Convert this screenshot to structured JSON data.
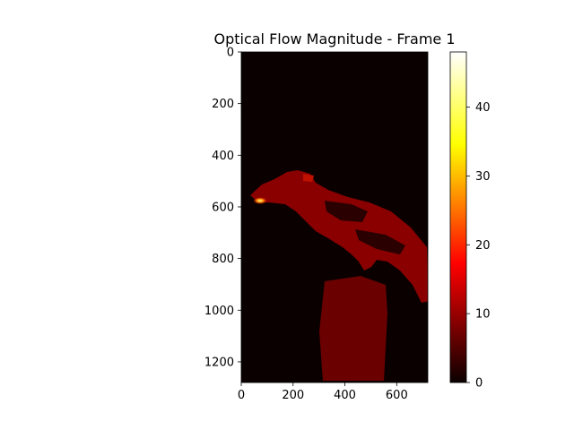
{
  "chart_data": {
    "type": "heatmap",
    "title": "Optical Flow Magnitude - Frame 1",
    "xlabel": "",
    "ylabel": "",
    "colormap": "hot",
    "xlim": [
      0,
      720
    ],
    "ylim": [
      1280,
      0
    ],
    "x_ticks": [
      0,
      200,
      400,
      600
    ],
    "y_ticks": [
      0,
      200,
      400,
      600,
      800,
      1000,
      1200
    ],
    "colorbar": {
      "range": [
        0,
        48
      ],
      "ticks": [
        0,
        10,
        20,
        30,
        40
      ]
    },
    "background_value": 0,
    "regions": [
      {
        "name": "bird",
        "typical_value": 9
      },
      {
        "name": "perch-post",
        "typical_value": 6
      },
      {
        "name": "beak-hotspot",
        "typical_value": 38
      }
    ]
  }
}
